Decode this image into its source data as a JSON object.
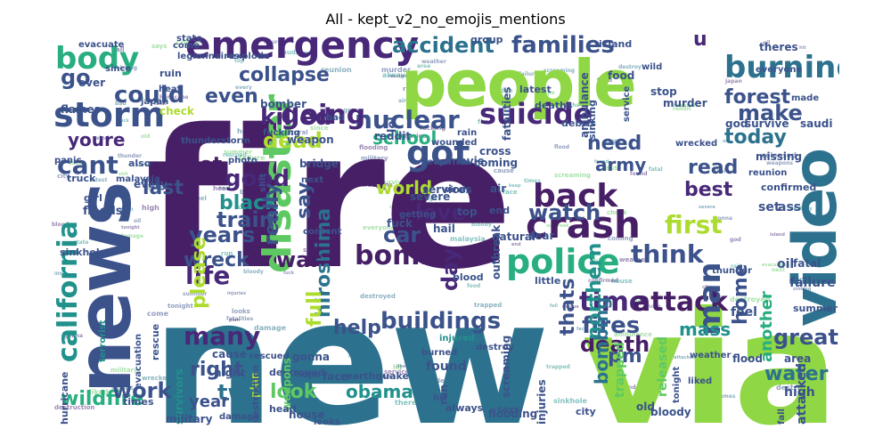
{
  "title": "All - kept_v2_no_emojis_mentions",
  "palette": {
    "dark_purple": "#471f66",
    "purple": "#482878",
    "indigo": "#3b528b",
    "blue": "#2c728e",
    "teal": "#21918c",
    "green": "#28ae80",
    "light_green": "#5ec962",
    "lime": "#8fd744",
    "yellow_green": "#addc30"
  },
  "words": [
    {
      "text": "fire",
      "color": "#471f66"
    },
    {
      "text": "new",
      "color": "#2c728e"
    },
    {
      "text": "via",
      "color": "#8fd744"
    },
    {
      "text": "people",
      "color": "#8fd744"
    },
    {
      "text": "news",
      "color": "#3b528b"
    },
    {
      "text": "video",
      "color": "#2c728e"
    },
    {
      "text": "emergency",
      "color": "#482878"
    },
    {
      "text": "disaster",
      "color": "#5ec962"
    },
    {
      "text": "crash",
      "color": "#471f66"
    },
    {
      "text": "police",
      "color": "#28ae80"
    },
    {
      "text": "suicide",
      "color": "#482878"
    },
    {
      "text": "storm",
      "color": "#3b528b"
    },
    {
      "text": "body",
      "color": "#28ae80"
    },
    {
      "text": "california",
      "color": "#21918c"
    },
    {
      "text": "burning",
      "color": "#2c728e"
    },
    {
      "text": "back",
      "color": "#471f66"
    },
    {
      "text": "nuclear",
      "color": "#3b528b"
    },
    {
      "text": "got",
      "color": "#3b528b"
    },
    {
      "text": "going",
      "color": "#482878"
    },
    {
      "text": "accident",
      "color": "#2c728e"
    },
    {
      "text": "families",
      "color": "#3b528b"
    },
    {
      "text": "bomb",
      "color": "#471f66"
    },
    {
      "text": "buildings",
      "color": "#3b528b"
    },
    {
      "text": "time",
      "color": "#482878"
    },
    {
      "text": "attack",
      "color": "#471f66"
    },
    {
      "text": "man",
      "color": "#3b528b"
    },
    {
      "text": "first",
      "color": "#addc30"
    },
    {
      "text": "think",
      "color": "#3b528b"
    },
    {
      "text": "watch",
      "color": "#3b528b"
    },
    {
      "text": "wildfire",
      "color": "#28ae80"
    },
    {
      "text": "hiroshima",
      "color": "#2c728e"
    },
    {
      "text": "killed",
      "color": "#482878"
    },
    {
      "text": "dead",
      "color": "#addc30"
    },
    {
      "text": "cant",
      "color": "#3b528b"
    },
    {
      "text": "could",
      "color": "#3b528b"
    },
    {
      "text": "train",
      "color": "#3b528b"
    },
    {
      "text": "fires",
      "color": "#3b528b"
    },
    {
      "text": "death",
      "color": "#471f66"
    },
    {
      "text": "two",
      "color": "#2c728e"
    },
    {
      "text": "many",
      "color": "#482878"
    },
    {
      "text": "work",
      "color": "#3b528b"
    },
    {
      "text": "right",
      "color": "#3b528b"
    },
    {
      "text": "life",
      "color": "#482878"
    },
    {
      "text": "good",
      "color": "#482878"
    },
    {
      "text": "black",
      "color": "#21918c"
    },
    {
      "text": "love",
      "color": "#482878"
    },
    {
      "text": "day",
      "color": "#482878"
    },
    {
      "text": "car",
      "color": "#3b528b"
    },
    {
      "text": "war",
      "color": "#471f66"
    },
    {
      "text": "years",
      "color": "#3b528b"
    },
    {
      "text": "wreck",
      "color": "#3b528b"
    },
    {
      "text": "help",
      "color": "#3b528b"
    },
    {
      "text": "obama",
      "color": "#21918c"
    },
    {
      "text": "look",
      "color": "#5ec962"
    },
    {
      "text": "water",
      "color": "#2c728e"
    },
    {
      "text": "great",
      "color": "#3b528b"
    },
    {
      "text": "pm",
      "color": "#3b528b"
    },
    {
      "text": "mass",
      "color": "#21918c"
    },
    {
      "text": "make",
      "color": "#3b528b"
    },
    {
      "text": "today",
      "color": "#2c728e"
    },
    {
      "text": "forest",
      "color": "#3b528b"
    },
    {
      "text": "read",
      "color": "#3b528b"
    },
    {
      "text": "best",
      "color": "#482878"
    },
    {
      "text": "need",
      "color": "#3b528b"
    },
    {
      "text": "army",
      "color": "#3b528b"
    },
    {
      "text": "world",
      "color": "#addc30"
    },
    {
      "text": "school",
      "color": "#28ae80"
    },
    {
      "text": "last",
      "color": "#3b528b"
    },
    {
      "text": "even",
      "color": "#3b528b"
    },
    {
      "text": "go",
      "color": "#3b528b"
    },
    {
      "text": "collapse",
      "color": "#3b528b"
    },
    {
      "text": "youre",
      "color": "#482878"
    },
    {
      "text": "hot",
      "color": "#471f66"
    },
    {
      "text": "really",
      "color": "#3b528b"
    },
    {
      "text": "say",
      "color": "#3b528b"
    },
    {
      "text": "northern",
      "color": "#21918c"
    },
    {
      "text": "thats",
      "color": "#3b528b"
    },
    {
      "text": "home",
      "color": "#3b528b"
    },
    {
      "text": "please",
      "color": "#addc30"
    },
    {
      "text": "full",
      "color": "#addc30"
    },
    {
      "text": "year",
      "color": "#3b528b"
    },
    {
      "text": "u",
      "color": "#482878"
    },
    {
      "text": "bombing",
      "color": "#2c728e"
    },
    {
      "text": "another",
      "color": "#28ae80"
    },
    {
      "text": "evacuate",
      "color": "#3b528b"
    },
    {
      "text": "legionnaires",
      "color": "#3b528b"
    },
    {
      "text": "explode",
      "color": "#3b528b"
    },
    {
      "text": "thunderstorm",
      "color": "#3b528b"
    },
    {
      "text": "terrorist",
      "color": "#21918c"
    },
    {
      "text": "earthquake",
      "color": "#3b528b"
    },
    {
      "text": "hurricane",
      "color": "#3b528b"
    },
    {
      "text": "survivors",
      "color": "#21918c"
    },
    {
      "text": "military",
      "color": "#3b528b"
    },
    {
      "text": "flooding",
      "color": "#3b528b"
    },
    {
      "text": "screaming",
      "color": "#3b528b"
    },
    {
      "text": "injuries",
      "color": "#3b528b"
    },
    {
      "text": "bloody",
      "color": "#3b528b"
    },
    {
      "text": "liked",
      "color": "#3b528b"
    },
    {
      "text": "high",
      "color": "#3b528b"
    },
    {
      "text": "feel",
      "color": "#3b528b"
    },
    {
      "text": "flood",
      "color": "#3b528b"
    },
    {
      "text": "destroy",
      "color": "#3b528b"
    },
    {
      "text": "injured",
      "color": "#21918c"
    },
    {
      "text": "found",
      "color": "#3b528b"
    },
    {
      "text": "burned",
      "color": "#3b528b"
    },
    {
      "text": "gonna",
      "color": "#3b528b"
    },
    {
      "text": "face",
      "color": "#3b528b"
    },
    {
      "text": "hope",
      "color": "#3b528b"
    },
    {
      "text": "rescued",
      "color": "#3b528b"
    },
    {
      "text": "destroyed",
      "color": "#3b528b"
    },
    {
      "text": "weapons",
      "color": "#5ec962"
    },
    {
      "text": "night",
      "color": "#3b528b"
    },
    {
      "text": "cause",
      "color": "#3b528b"
    },
    {
      "text": "plan",
      "color": "#addc30"
    },
    {
      "text": "damage",
      "color": "#3b528b"
    },
    {
      "text": "destruction",
      "color": "#3b528b"
    },
    {
      "text": "house",
      "color": "#3b528b"
    },
    {
      "text": "looks",
      "color": "#3b528b"
    },
    {
      "text": "head",
      "color": "#3b528b"
    },
    {
      "text": "says",
      "color": "#3b528b"
    },
    {
      "text": "city",
      "color": "#3b528b"
    },
    {
      "text": "always",
      "color": "#3b528b"
    },
    {
      "text": "hit",
      "color": "#3b528b"
    },
    {
      "text": "run",
      "color": "#3b528b"
    },
    {
      "text": "old",
      "color": "#3b528b"
    },
    {
      "text": "tonight",
      "color": "#3b528b"
    },
    {
      "text": "trapped",
      "color": "#5ec962"
    },
    {
      "text": "released",
      "color": "#5ec962"
    },
    {
      "text": "fall",
      "color": "#3b528b"
    },
    {
      "text": "attacked",
      "color": "#3b528b"
    },
    {
      "text": "weather",
      "color": "#3b528b"
    },
    {
      "text": "area",
      "color": "#3b528b"
    },
    {
      "text": "summer",
      "color": "#3b528b"
    },
    {
      "text": "fatal",
      "color": "#3b528b"
    },
    {
      "text": "failure",
      "color": "#3b528b"
    },
    {
      "text": "oil",
      "color": "#3b528b"
    },
    {
      "text": "set",
      "color": "#3b528b"
    },
    {
      "text": "ass",
      "color": "#3b528b"
    },
    {
      "text": "confirmed",
      "color": "#3b528b"
    },
    {
      "text": "reunion",
      "color": "#3b528b"
    },
    {
      "text": "missing",
      "color": "#3b528b"
    },
    {
      "text": "saudi",
      "color": "#3b528b"
    },
    {
      "text": "survive",
      "color": "#3b528b"
    },
    {
      "text": "god",
      "color": "#3b528b"
    },
    {
      "text": "wrecked",
      "color": "#3b528b"
    },
    {
      "text": "made",
      "color": "#3b528b"
    },
    {
      "text": "theres",
      "color": "#3b528b"
    },
    {
      "text": "everyone",
      "color": "#3b528b"
    },
    {
      "text": "wild",
      "color": "#3b528b"
    },
    {
      "text": "stop",
      "color": "#3b528b"
    },
    {
      "text": "murder",
      "color": "#3b528b"
    },
    {
      "text": "food",
      "color": "#3b528b"
    },
    {
      "text": "ambulance",
      "color": "#3b528b"
    },
    {
      "text": "service",
      "color": "#3b528b"
    },
    {
      "text": "latest",
      "color": "#3b528b"
    },
    {
      "text": "sinking",
      "color": "#3b528b"
    },
    {
      "text": "deaths",
      "color": "#3b528b"
    },
    {
      "text": "debris",
      "color": "#3b528b"
    },
    {
      "text": "island",
      "color": "#3b528b"
    },
    {
      "text": "group",
      "color": "#3b528b"
    },
    {
      "text": "fatalities",
      "color": "#3b528b"
    },
    {
      "text": "rain",
      "color": "#3b528b"
    },
    {
      "text": "reddit",
      "color": "#3b528b"
    },
    {
      "text": "weapon",
      "color": "#3b528b"
    },
    {
      "text": "bad",
      "color": "#3b528b"
    },
    {
      "text": "bomber",
      "color": "#3b528b"
    },
    {
      "text": "ruin",
      "color": "#3b528b"
    },
    {
      "text": "check",
      "color": "#addc30"
    },
    {
      "text": "japan",
      "color": "#3b528b"
    },
    {
      "text": "heat",
      "color": "#3b528b"
    },
    {
      "text": "come",
      "color": "#3b528b"
    },
    {
      "text": "state",
      "color": "#3b528b"
    },
    {
      "text": "since",
      "color": "#3b528b"
    },
    {
      "text": "fucking",
      "color": "#3b528b"
    },
    {
      "text": "flames",
      "color": "#3b528b"
    },
    {
      "text": "panic",
      "color": "#3b528b"
    },
    {
      "text": "truck",
      "color": "#3b528b"
    },
    {
      "text": "girl",
      "color": "#3b528b"
    },
    {
      "text": "floods",
      "color": "#3b528b"
    },
    {
      "text": "also",
      "color": "#3b528b"
    },
    {
      "text": "photo",
      "color": "#3b528b"
    },
    {
      "text": "bridge",
      "color": "#3b528b"
    },
    {
      "text": "next",
      "color": "#3b528b"
    },
    {
      "text": "services",
      "color": "#3b528b"
    },
    {
      "text": "cross",
      "color": "#3b528b"
    },
    {
      "text": "coming",
      "color": "#3b528b"
    },
    {
      "text": "keep",
      "color": "#3b528b"
    },
    {
      "text": "movie",
      "color": "#3b528b"
    },
    {
      "text": "wounded",
      "color": "#3b528b"
    },
    {
      "text": "severe",
      "color": "#3b528b"
    },
    {
      "text": "hail",
      "color": "#3b528b"
    },
    {
      "text": "top",
      "color": "#3b528b"
    },
    {
      "text": "getting",
      "color": "#3b528b"
    },
    {
      "text": "end",
      "color": "#3b528b"
    },
    {
      "text": "air",
      "color": "#3b528b"
    },
    {
      "text": "natural",
      "color": "#3b528b"
    },
    {
      "text": "fear",
      "color": "#3b528b"
    },
    {
      "text": "outbreak",
      "color": "#3b528b"
    },
    {
      "text": "blood",
      "color": "#3b528b"
    },
    {
      "text": "little",
      "color": "#3b528b"
    },
    {
      "text": "thunder",
      "color": "#3b528b"
    },
    {
      "text": "sinkhole",
      "color": "#3b528b"
    },
    {
      "text": "content",
      "color": "#3b528b"
    },
    {
      "text": "lol",
      "color": "#3b528b"
    },
    {
      "text": "ever",
      "color": "#3b528b"
    },
    {
      "text": "fuck",
      "color": "#3b528b"
    },
    {
      "text": "times",
      "color": "#3b528b"
    },
    {
      "text": "evacuation",
      "color": "#3b528b"
    },
    {
      "text": "rescue",
      "color": "#3b528b"
    },
    {
      "text": "every",
      "color": "#3b528b"
    },
    {
      "text": "wind",
      "color": "#3b528b"
    },
    {
      "text": "malaysia",
      "color": "#3b528b"
    },
    {
      "text": "shit",
      "color": "#3b528b"
    }
  ]
}
